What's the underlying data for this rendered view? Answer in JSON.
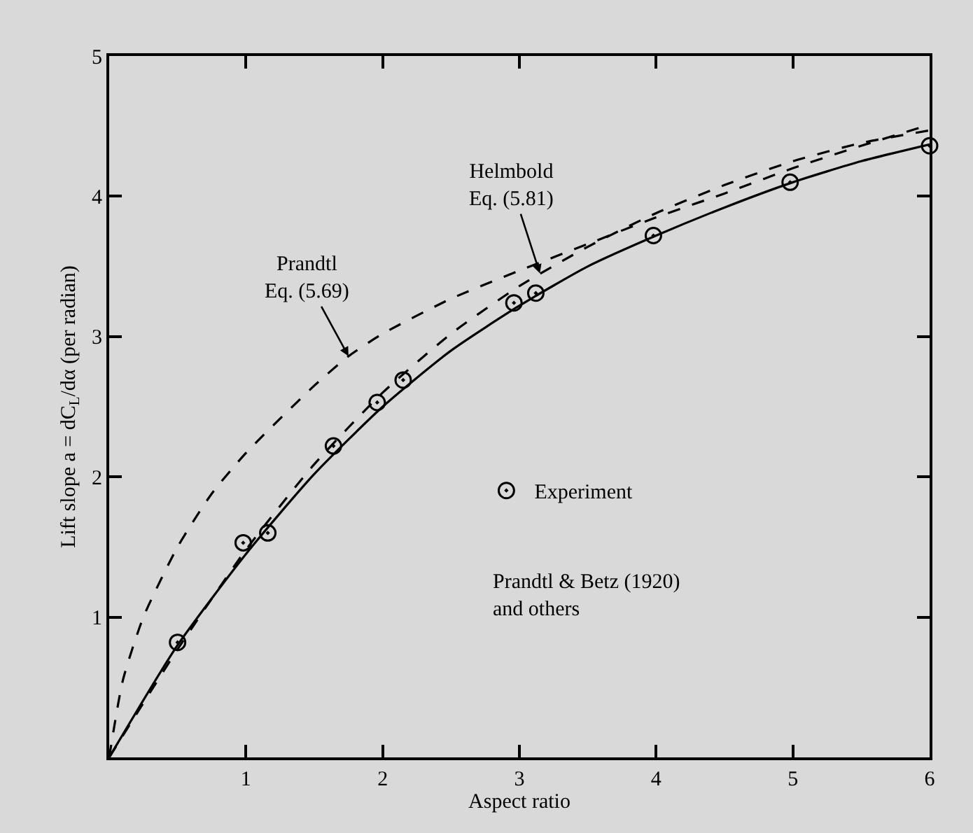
{
  "chart_data": {
    "type": "line",
    "xlabel": "Aspect ratio",
    "ylabel": "Lift slope a = dC$_{L}$/dα (per radian)",
    "xlim": [
      0,
      6
    ],
    "xticks": [
      {
        "value": 0,
        "label": null
      },
      1,
      2,
      3,
      4,
      5,
      6
    ],
    "ylim": [
      0,
      5
    ],
    "yticks": [
      {
        "value": 0,
        "label": null
      },
      1,
      2,
      3,
      4,
      5
    ],
    "grid": false,
    "legend": "center",
    "marker": "none",
    "series": [
      {
        "color": "#000000",
        "line_style": "dashed",
        "x": [
          0,
          0.1,
          0.25,
          0.5,
          0.75,
          1,
          1.5,
          1.75,
          2,
          2.5,
          3,
          3.5,
          4,
          4.5,
          5,
          5.5,
          6
        ],
        "values": [
          0,
          0.55,
          1.0,
          1.5,
          1.88,
          2.17,
          2.65,
          2.86,
          3.02,
          3.27,
          3.47,
          3.66,
          3.85,
          4.02,
          4.2,
          4.36,
          4.51
        ]
      },
      {
        "color": "#000000",
        "line_style": "dashed",
        "x": [
          0,
          0.5,
          1,
          1.5,
          2,
          2.5,
          3,
          3.5,
          4,
          4.5,
          5,
          5.5,
          6
        ],
        "values": [
          0,
          0.77,
          1.48,
          2.09,
          2.6,
          3.02,
          3.36,
          3.64,
          3.88,
          4.08,
          4.25,
          4.38,
          4.47
        ]
      },
      {
        "color": "#000000",
        "line_style": "solid",
        "x": [
          0,
          0.5,
          1,
          1.5,
          2,
          2.5,
          3,
          3.5,
          4,
          4.5,
          5,
          5.5,
          6
        ],
        "values": [
          0,
          0.8,
          1.45,
          2.02,
          2.5,
          2.9,
          3.22,
          3.5,
          3.72,
          3.92,
          4.1,
          4.25,
          4.37
        ]
      },
      {
        "type": "scatter",
        "name": "Experiment",
        "color": "#000000",
        "marker": "circle",
        "x": [
          0.5,
          0.98,
          1.16,
          1.64,
          1.96,
          2.15,
          2.96,
          3.12,
          3.98,
          4.98,
          6.0
        ],
        "values": [
          0.82,
          1.53,
          1.6,
          2.22,
          2.53,
          2.69,
          3.24,
          3.31,
          3.72,
          4.1,
          4.36
        ]
      }
    ],
    "annotations": [
      {
        "text": "Prandtl\nEq. (5.69)",
        "x": 1.75,
        "y": 2.86
      },
      {
        "text": "Helmbold\nEq. (5.81)",
        "x": 3.15,
        "y": 3.45
      },
      "Prandtl & Betz (1920)\nand others"
    ]
  }
}
